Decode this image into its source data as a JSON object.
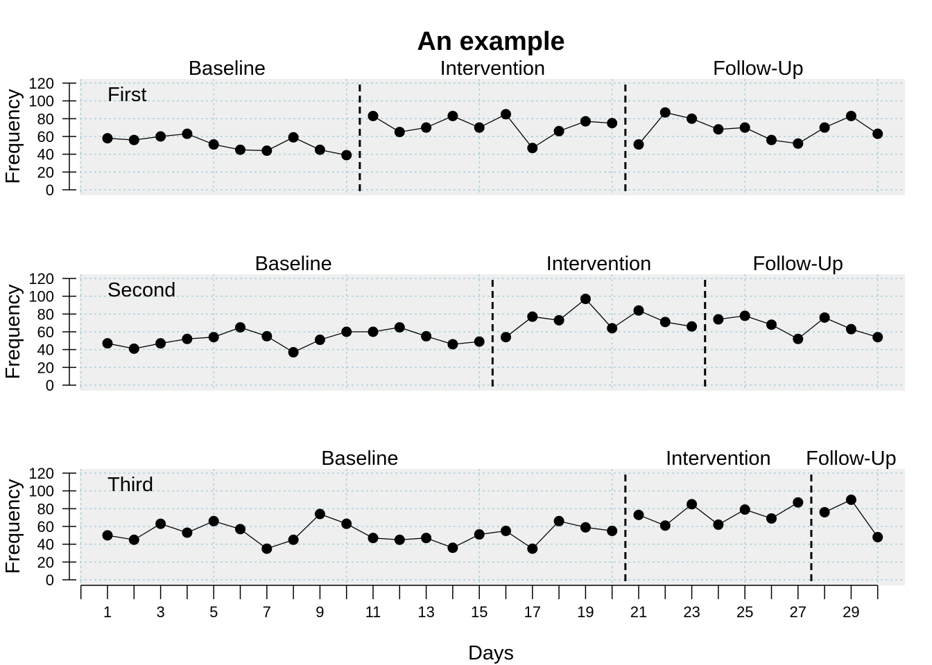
{
  "chart_data": {
    "type": "line",
    "title": "An example",
    "xlabel": "Days",
    "ylabel": "Frequency",
    "xlim": [
      0,
      31
    ],
    "ylim": [
      0,
      120
    ],
    "yticks": [
      0,
      20,
      40,
      60,
      80,
      100,
      120
    ],
    "xtick_labels": [
      1,
      3,
      5,
      7,
      9,
      11,
      13,
      15,
      17,
      19,
      21,
      23,
      25,
      27,
      29
    ],
    "grid": true,
    "phase_names": [
      "Baseline",
      "Intervention",
      "Follow-Up"
    ],
    "panels": [
      {
        "name": "First",
        "phase_change_after": [
          10,
          20
        ],
        "x": [
          1,
          2,
          3,
          4,
          5,
          6,
          7,
          8,
          9,
          10,
          11,
          12,
          13,
          14,
          15,
          16,
          17,
          18,
          19,
          20,
          21,
          22,
          23,
          24,
          25,
          26,
          27,
          28,
          29,
          30
        ],
        "values": [
          58,
          56,
          60,
          63,
          51,
          45,
          44,
          59,
          45,
          39,
          83,
          65,
          70,
          83,
          70,
          85,
          47,
          66,
          77,
          75,
          51,
          87,
          80,
          68,
          70,
          56,
          52,
          70,
          83,
          63
        ]
      },
      {
        "name": "Second",
        "phase_change_after": [
          15,
          23
        ],
        "x": [
          1,
          2,
          3,
          4,
          5,
          6,
          7,
          8,
          9,
          10,
          11,
          12,
          13,
          14,
          15,
          16,
          17,
          18,
          19,
          20,
          21,
          22,
          23,
          24,
          25,
          26,
          27,
          28,
          29,
          30
        ],
        "values": [
          47,
          41,
          47,
          52,
          54,
          65,
          55,
          37,
          51,
          60,
          60,
          65,
          55,
          46,
          49,
          54,
          77,
          73,
          97,
          64,
          84,
          71,
          66,
          74,
          78,
          68,
          52,
          76,
          63,
          54
        ]
      },
      {
        "name": "Third",
        "phase_change_after": [
          20,
          27
        ],
        "x": [
          1,
          2,
          3,
          4,
          5,
          6,
          7,
          8,
          9,
          10,
          11,
          12,
          13,
          14,
          15,
          16,
          17,
          18,
          19,
          20,
          21,
          22,
          23,
          24,
          25,
          26,
          27,
          28,
          29,
          30
        ],
        "values": [
          50,
          45,
          63,
          53,
          66,
          57,
          35,
          45,
          74,
          63,
          47,
          45,
          47,
          36,
          51,
          55,
          35,
          66,
          59,
          55,
          73,
          61,
          85,
          62,
          79,
          69,
          87,
          76,
          90,
          48
        ]
      }
    ]
  }
}
